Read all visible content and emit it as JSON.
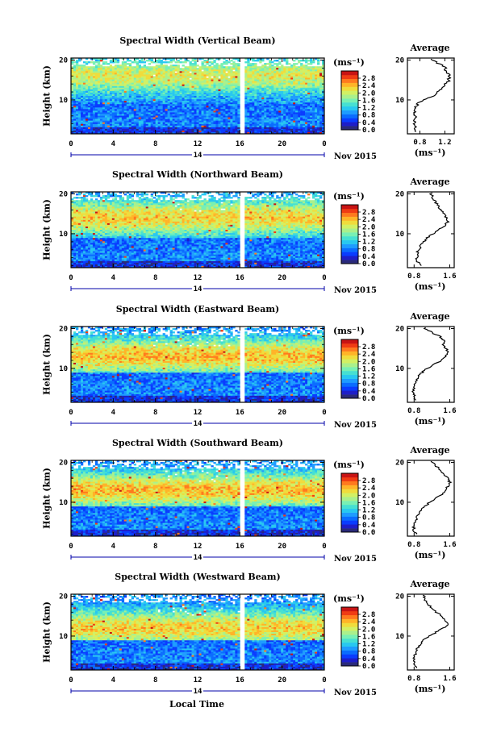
{
  "figure": {
    "x_label": "Local Time",
    "date_label": "Nov 2015",
    "date_tick_label": "14",
    "colorbar_unit": "(ms⁻¹)",
    "avg_unit": "(ms⁻¹)",
    "avg_title": "Average",
    "colorscale": [
      "#2a2a7a",
      "#1e1ec8",
      "#0a3cff",
      "#0a6cff",
      "#1e9cff",
      "#28c8f0",
      "#46e0d2",
      "#78f0b4",
      "#aaf08c",
      "#d2f064",
      "#f0dc3c",
      "#ffb428",
      "#ff7a1e",
      "#f03c14",
      "#c81414"
    ]
  },
  "chart_data": [
    {
      "type": "heatmap",
      "title": "Spectral Width (Vertical Beam)",
      "ylabel": "Height (km)",
      "x_ticks": [
        "0",
        "4",
        "8",
        "12",
        "16",
        "20",
        "0"
      ],
      "y_ticks": [
        "20",
        "10"
      ],
      "xlim": [
        0,
        24
      ],
      "ylim": [
        1.5,
        20.5
      ],
      "colorbar_ticks": [
        "2.8",
        "2.4",
        "2.0",
        "1.6",
        "1.2",
        "0.8",
        "0.4",
        "0.0"
      ],
      "average": {
        "x_ticks": [
          "0.8",
          "1.2"
        ],
        "xlim": [
          0.6,
          1.35
        ],
        "heights": [
          2,
          3,
          4,
          5,
          6,
          7,
          8,
          9,
          10,
          11,
          12,
          13,
          14,
          15,
          16,
          17,
          18,
          19,
          20
        ],
        "values": [
          0.76,
          0.72,
          0.7,
          0.71,
          0.72,
          0.73,
          0.74,
          0.76,
          0.86,
          1.0,
          1.1,
          1.17,
          1.22,
          1.26,
          1.27,
          1.24,
          1.2,
          1.12,
          1.0
        ]
      }
    },
    {
      "type": "heatmap",
      "title": "Spectral Width (Northward Beam)",
      "ylabel": "Height (km)",
      "x_ticks": [
        "0",
        "4",
        "8",
        "12",
        "16",
        "20",
        "0"
      ],
      "y_ticks": [
        "20",
        "10"
      ],
      "xlim": [
        0,
        24
      ],
      "ylim": [
        1.5,
        20.5
      ],
      "colorbar_ticks": [
        "2.8",
        "2.4",
        "2.0",
        "1.6",
        "1.2",
        "0.8",
        "0.4",
        "0.0"
      ],
      "average": {
        "x_ticks": [
          "0.8",
          "1.6"
        ],
        "xlim": [
          0.65,
          1.7
        ],
        "heights": [
          2,
          3,
          4,
          5,
          6,
          7,
          8,
          9,
          10,
          11,
          12,
          13,
          14,
          15,
          16,
          17,
          18,
          19,
          20
        ],
        "values": [
          0.95,
          0.88,
          0.86,
          0.87,
          0.9,
          0.95,
          1.02,
          1.1,
          1.22,
          1.34,
          1.48,
          1.56,
          1.52,
          1.46,
          1.4,
          1.34,
          1.28,
          1.22,
          1.18
        ]
      }
    },
    {
      "type": "heatmap",
      "title": "Spectral Width (Eastward Beam)",
      "ylabel": "Height (km)",
      "x_ticks": [
        "0",
        "4",
        "8",
        "12",
        "16",
        "20",
        "0"
      ],
      "y_ticks": [
        "20",
        "10"
      ],
      "xlim": [
        0,
        24
      ],
      "ylim": [
        1.5,
        20.5
      ],
      "colorbar_ticks": [
        "2.8",
        "2.4",
        "2.0",
        "1.6",
        "1.2",
        "0.8",
        "0.4",
        "0.0"
      ],
      "average": {
        "x_ticks": [
          "0.8",
          "1.6"
        ],
        "xlim": [
          0.65,
          1.7
        ],
        "heights": [
          2,
          3,
          4,
          5,
          6,
          7,
          8,
          9,
          10,
          11,
          12,
          13,
          14,
          15,
          16,
          17,
          18,
          19,
          20
        ],
        "values": [
          0.85,
          0.8,
          0.78,
          0.8,
          0.82,
          0.86,
          0.9,
          0.98,
          1.1,
          1.26,
          1.4,
          1.5,
          1.58,
          1.52,
          1.44,
          1.48,
          1.38,
          1.2,
          1.05
        ]
      }
    },
    {
      "type": "heatmap",
      "title": "Spectral Width (Southward Beam)",
      "ylabel": "Height (km)",
      "x_ticks": [
        "0",
        "4",
        "8",
        "12",
        "16",
        "20",
        "0"
      ],
      "y_ticks": [
        "20",
        "10"
      ],
      "xlim": [
        0,
        24
      ],
      "ylim": [
        1.5,
        20.5
      ],
      "colorbar_ticks": [
        "2.8",
        "2.4",
        "2.0",
        "1.6",
        "1.2",
        "0.8",
        "0.4",
        "0.0"
      ],
      "average": {
        "x_ticks": [
          "0.8",
          "1.6"
        ],
        "xlim": [
          0.65,
          1.7
        ],
        "heights": [
          2,
          3,
          4,
          5,
          6,
          7,
          8,
          9,
          10,
          11,
          12,
          13,
          14,
          15,
          16,
          17,
          18,
          19,
          20
        ],
        "values": [
          0.84,
          0.8,
          0.79,
          0.82,
          0.85,
          0.9,
          0.96,
          1.05,
          1.15,
          1.3,
          1.42,
          1.5,
          1.56,
          1.6,
          1.55,
          1.48,
          1.4,
          1.3,
          1.2
        ]
      }
    },
    {
      "type": "heatmap",
      "title": "Spectral Width (Westward Beam)",
      "ylabel": "Height (km)",
      "x_ticks": [
        "0",
        "4",
        "8",
        "12",
        "16",
        "20",
        "0"
      ],
      "y_ticks": [
        "20",
        "10"
      ],
      "xlim": [
        0,
        24
      ],
      "ylim": [
        1.5,
        20.5
      ],
      "colorbar_ticks": [
        "2.8",
        "2.4",
        "2.0",
        "1.6",
        "1.2",
        "0.8",
        "0.4",
        "0.0"
      ],
      "average": {
        "x_ticks": [
          "0.8",
          "1.6"
        ],
        "xlim": [
          0.65,
          1.7
        ],
        "heights": [
          2,
          3,
          4,
          5,
          6,
          7,
          8,
          9,
          10,
          11,
          12,
          13,
          14,
          15,
          16,
          17,
          18,
          19,
          20
        ],
        "values": [
          0.86,
          0.82,
          0.8,
          0.81,
          0.84,
          0.88,
          0.94,
          1.02,
          1.14,
          1.3,
          1.46,
          1.56,
          1.5,
          1.42,
          1.3,
          1.2,
          1.12,
          1.05,
          1.02
        ]
      }
    }
  ]
}
